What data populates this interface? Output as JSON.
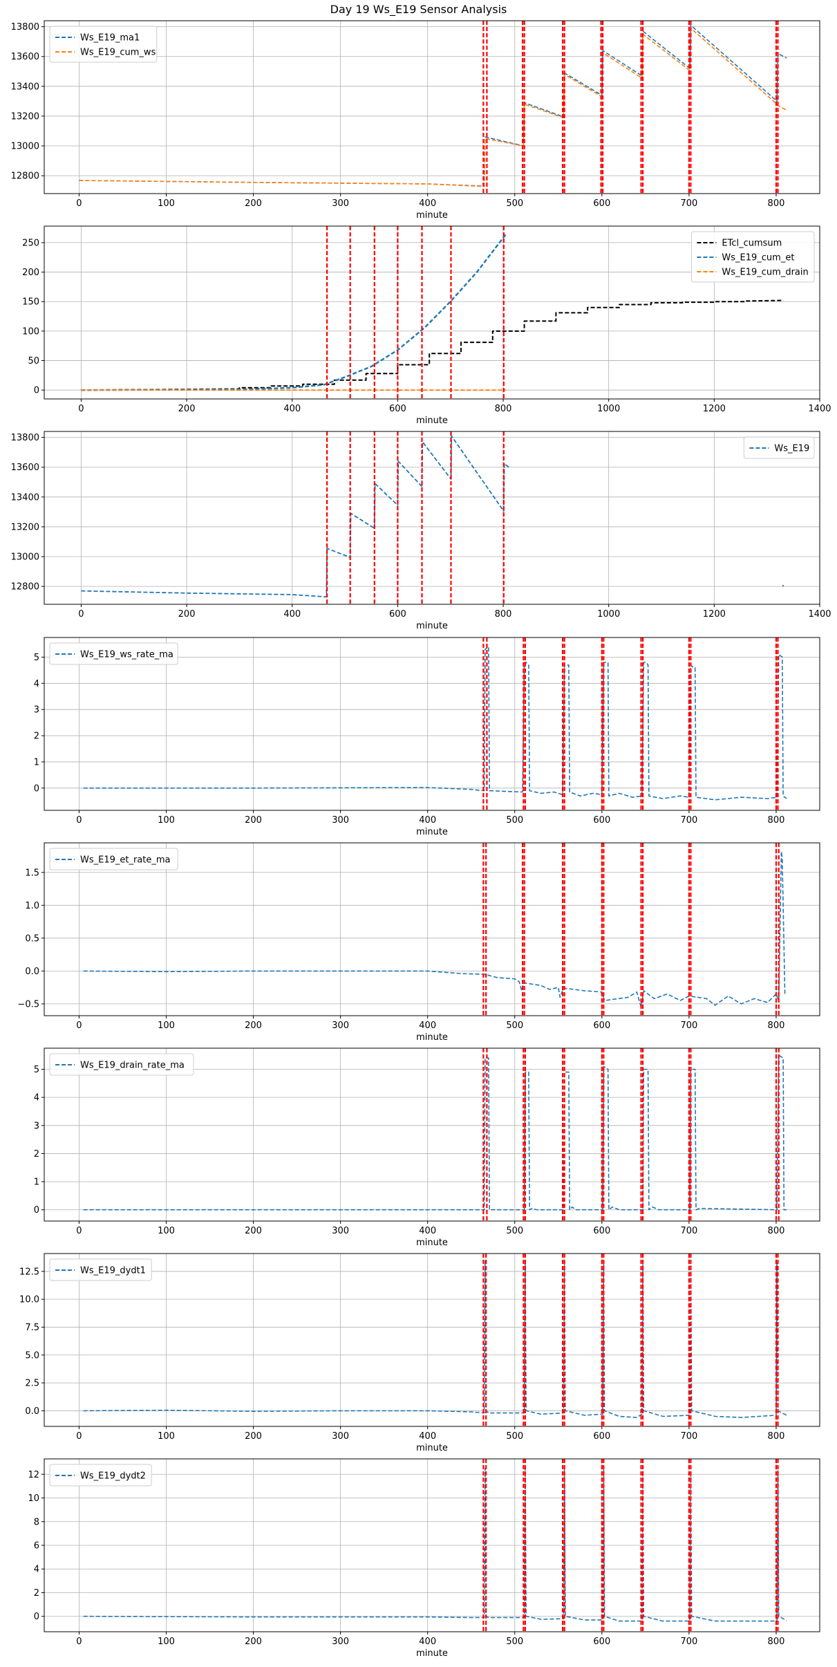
{
  "figure_title": "Day 19 Ws_E19 Sensor Analysis",
  "colors": {
    "blue": "#1f77b4",
    "orange": "#ff7f0e",
    "black": "#000000",
    "event": "#ff0000",
    "grid": "#b0b0b0"
  },
  "chart_data": [
    {
      "type": "line",
      "title": "",
      "xlabel": "minute",
      "ylabel": "",
      "xlim": [
        -40,
        850
      ],
      "ylim": [
        12680,
        13840
      ],
      "xticks": [
        0,
        100,
        200,
        300,
        400,
        500,
        600,
        700,
        800
      ],
      "yticks": [
        12800,
        13000,
        13200,
        13400,
        13600,
        13800
      ],
      "legend_loc": "upper-left",
      "vlines": [
        464,
        468,
        509,
        511,
        555,
        557,
        599,
        601,
        645,
        647,
        700,
        702,
        800,
        802
      ],
      "series": [
        {
          "name": "Ws_E19_ma1",
          "color": "blue",
          "style": "dashed",
          "lw": 1.6,
          "x": [
            0,
            200,
            400,
            465,
            466,
            510,
            511,
            556,
            557,
            600,
            601,
            646,
            647,
            701,
            702,
            801,
            802,
            812
          ],
          "y": [
            12768,
            12755,
            12745,
            12730,
            13060,
            13000,
            13290,
            13195,
            13490,
            13340,
            13640,
            13470,
            13770,
            13520,
            13810,
            13300,
            13620,
            13590
          ]
        },
        {
          "name": "Ws_E19_cum_ws",
          "color": "orange",
          "style": "dashed",
          "lw": 1.6,
          "x": [
            0,
            200,
            400,
            465,
            466,
            510,
            511,
            556,
            557,
            600,
            601,
            646,
            647,
            701,
            702,
            801,
            802,
            812
          ],
          "y": [
            12768,
            12755,
            12745,
            12728,
            13050,
            13000,
            13280,
            13190,
            13480,
            13330,
            13625,
            13455,
            13750,
            13505,
            13790,
            13280,
            13270,
            13240
          ]
        }
      ]
    },
    {
      "type": "line",
      "title": "",
      "xlabel": "minute",
      "ylabel": "",
      "xlim": [
        -70,
        1400
      ],
      "ylim": [
        -15,
        278
      ],
      "xticks": [
        0,
        200,
        400,
        600,
        800,
        1000,
        1200,
        1400
      ],
      "yticks": [
        0,
        50,
        100,
        150,
        200,
        250
      ],
      "legend_loc": "upper-right",
      "vlines": [
        466,
        510,
        556,
        600,
        646,
        701,
        801
      ],
      "series": [
        {
          "name": "ETcl_cumsum",
          "color": "black",
          "style": "dashed",
          "lw": 2,
          "x": [
            0,
            300,
            300,
            360,
            360,
            420,
            420,
            480,
            480,
            540,
            540,
            600,
            600,
            660,
            660,
            720,
            720,
            780,
            780,
            840,
            840,
            900,
            900,
            960,
            960,
            1020,
            1020,
            1080,
            1080,
            1140,
            1140,
            1200,
            1200,
            1260,
            1260,
            1330
          ],
          "y": [
            0,
            2,
            4,
            4,
            7,
            7,
            10,
            10,
            17,
            17,
            28,
            28,
            43,
            43,
            62,
            62,
            81,
            81,
            100,
            100,
            117,
            117,
            131,
            131,
            140,
            140,
            145,
            145,
            148,
            148,
            149,
            149,
            150,
            150,
            151,
            152
          ]
        },
        {
          "name": "Ws_E19_cum_et",
          "color": "blue",
          "style": "dashed",
          "lw": 2.4,
          "x": [
            0,
            300,
            400,
            460,
            500,
            550,
            600,
            650,
            700,
            750,
            805
          ],
          "y": [
            0,
            1,
            4,
            9,
            22,
            40,
            68,
            105,
            150,
            200,
            264
          ]
        },
        {
          "name": "Ws_E19_cum_drain",
          "color": "orange",
          "style": "dashed",
          "lw": 1.8,
          "x": [
            0,
            805
          ],
          "y": [
            0,
            0
          ]
        }
      ]
    },
    {
      "type": "line",
      "title": "",
      "xlabel": "minute",
      "ylabel": "",
      "xlim": [
        -70,
        1400
      ],
      "ylim": [
        12680,
        13840
      ],
      "xticks": [
        0,
        200,
        400,
        600,
        800,
        1000,
        1200,
        1400
      ],
      "yticks": [
        12800,
        13000,
        13200,
        13400,
        13600,
        13800
      ],
      "legend_loc": "upper-right",
      "vlines": [
        466,
        510,
        556,
        600,
        646,
        701,
        801
      ],
      "series": [
        {
          "name": "Ws_E19",
          "color": "blue",
          "style": "dashed",
          "lw": 1.8,
          "x": [
            0,
            200,
            400,
            465,
            466,
            510,
            511,
            556,
            557,
            600,
            601,
            646,
            647,
            701,
            702,
            801,
            802,
            812
          ],
          "y": [
            12770,
            12755,
            12745,
            12730,
            13055,
            12995,
            13290,
            13190,
            13490,
            13345,
            13640,
            13470,
            13770,
            13520,
            13810,
            13305,
            13625,
            13595
          ]
        },
        {
          "name": "",
          "color": "blue",
          "style": "dashed",
          "lw": 1.8,
          "x": [
            1330,
            1331
          ],
          "y": [
            12810,
            12800
          ]
        }
      ]
    },
    {
      "type": "line",
      "title": "",
      "xlabel": "minute",
      "ylabel": "",
      "xlim": [
        -40,
        850
      ],
      "ylim": [
        -0.85,
        5.75
      ],
      "xticks": [
        0,
        100,
        200,
        300,
        400,
        500,
        600,
        700,
        800
      ],
      "yticks": [
        0,
        1,
        2,
        3,
        4,
        5
      ],
      "legend_loc": "upper-left",
      "vlines": [
        464,
        468,
        510,
        512,
        555,
        557,
        600,
        602,
        645,
        647,
        700,
        702,
        800,
        802
      ],
      "series": [
        {
          "name": "Ws_E19_ws_rate_ma",
          "color": "blue",
          "style": "dashed",
          "lw": 1.6,
          "x": [
            5,
            200,
            400,
            450,
            465,
            466,
            470,
            471,
            509,
            511,
            513,
            516,
            517,
            530,
            545,
            555,
            557,
            560,
            562,
            563,
            575,
            590,
            600,
            602,
            605,
            607,
            608,
            620,
            635,
            646,
            648,
            651,
            653,
            654,
            670,
            690,
            700,
            702,
            705,
            707,
            708,
            730,
            760,
            790,
            801,
            803,
            807,
            808,
            812
          ],
          "y": [
            0,
            0,
            0.02,
            -0.05,
            -0.1,
            5.3,
            5.4,
            -0.1,
            -0.15,
            4.8,
            4.8,
            4.7,
            -0.1,
            -0.2,
            -0.15,
            -0.25,
            4.7,
            4.7,
            4.7,
            -0.15,
            -0.3,
            -0.2,
            -0.25,
            4.8,
            4.8,
            4.8,
            -0.3,
            -0.2,
            -0.35,
            -0.3,
            4.8,
            4.8,
            4.7,
            -0.3,
            -0.4,
            -0.3,
            -0.35,
            4.7,
            4.6,
            4.6,
            -0.35,
            -0.45,
            -0.35,
            -0.4,
            -0.35,
            5.1,
            5.0,
            -0.3,
            -0.4
          ]
        }
      ]
    },
    {
      "type": "line",
      "title": "",
      "xlabel": "minute",
      "ylabel": "",
      "xlim": [
        -40,
        850
      ],
      "ylim": [
        -0.68,
        1.95
      ],
      "xticks": [
        0,
        100,
        200,
        300,
        400,
        500,
        600,
        700,
        800
      ],
      "yticks": [
        -0.5,
        0.0,
        0.5,
        1.0,
        1.5
      ],
      "legend_loc": "upper-left",
      "vlines": [
        464,
        467,
        509,
        511,
        555,
        557,
        600,
        602,
        645,
        647,
        700,
        702,
        800,
        803
      ],
      "series": [
        {
          "name": "Ws_E19_et_rate_ma",
          "color": "blue",
          "style": "dashed",
          "lw": 1.6,
          "x": [
            5,
            100,
            200,
            300,
            400,
            420,
            440,
            465,
            480,
            500,
            505,
            508,
            510,
            530,
            540,
            550,
            552,
            556,
            580,
            600,
            603,
            630,
            640,
            645,
            648,
            660,
            675,
            690,
            700,
            720,
            730,
            745,
            760,
            775,
            790,
            800,
            803,
            806,
            807,
            810
          ],
          "y": [
            0,
            -0.01,
            0,
            0,
            0,
            -0.02,
            -0.04,
            -0.05,
            -0.1,
            -0.12,
            -0.16,
            -0.3,
            -0.18,
            -0.22,
            -0.28,
            -0.25,
            -0.4,
            -0.26,
            -0.3,
            -0.32,
            -0.45,
            -0.4,
            -0.32,
            -0.55,
            -0.3,
            -0.42,
            -0.35,
            -0.45,
            -0.38,
            -0.42,
            -0.52,
            -0.38,
            -0.5,
            -0.42,
            -0.48,
            -0.35,
            -0.45,
            1.82,
            1.7,
            -0.35
          ]
        }
      ]
    },
    {
      "type": "line",
      "title": "",
      "xlabel": "minute",
      "ylabel": "",
      "xlim": [
        -40,
        850
      ],
      "ylim": [
        -0.4,
        5.75
      ],
      "xticks": [
        0,
        100,
        200,
        300,
        400,
        500,
        600,
        700,
        800
      ],
      "yticks": [
        0,
        1,
        2,
        3,
        4,
        5
      ],
      "legend_loc": "upper-left",
      "vlines": [
        464,
        468,
        510,
        512,
        555,
        557,
        600,
        602,
        645,
        647,
        700,
        702,
        800,
        803
      ],
      "series": [
        {
          "name": "Ws_E19_drain_rate_ma",
          "color": "blue",
          "style": "dashed",
          "lw": 1.6,
          "x": [
            5,
            465,
            466,
            470,
            471,
            475,
            511,
            512,
            516,
            517,
            520,
            525,
            556,
            557,
            562,
            563,
            566,
            570,
            601,
            602,
            607,
            608,
            612,
            620,
            647,
            648,
            653,
            654,
            658,
            662,
            665,
            701,
            702,
            707,
            708,
            712,
            801,
            803,
            808,
            809,
            812
          ],
          "y": [
            0,
            0,
            5.4,
            5.4,
            0,
            0,
            0,
            4.9,
            4.9,
            0,
            0.05,
            0,
            0,
            4.9,
            4.9,
            0,
            0.1,
            0,
            0,
            5.1,
            5.0,
            0,
            0.1,
            0,
            0,
            5.0,
            5.0,
            0,
            0.1,
            0.05,
            0,
            0,
            5.0,
            5.0,
            0,
            0.05,
            0,
            5.5,
            5.4,
            0,
            0
          ]
        }
      ]
    },
    {
      "type": "line",
      "title": "",
      "xlabel": "minute",
      "ylabel": "",
      "xlim": [
        -40,
        850
      ],
      "ylim": [
        -1.4,
        14.1
      ],
      "xticks": [
        0,
        100,
        200,
        300,
        400,
        500,
        600,
        700,
        800
      ],
      "yticks": [
        0.0,
        2.5,
        5.0,
        7.5,
        10.0,
        12.5
      ],
      "legend_loc": "upper-left",
      "vlines": [
        464,
        467,
        510,
        512,
        555,
        557,
        600,
        602,
        645,
        647,
        700,
        702,
        800,
        802
      ],
      "series": [
        {
          "name": "Ws_E19_dydt1",
          "color": "blue",
          "style": "dashed",
          "lw": 1.6,
          "x": [
            5,
            100,
            200,
            300,
            400,
            450,
            465,
            466,
            467,
            470,
            511,
            512,
            513,
            530,
            556,
            557,
            558,
            580,
            601,
            602,
            603,
            620,
            640,
            646,
            647,
            648,
            670,
            701,
            702,
            703,
            730,
            760,
            800,
            801,
            802,
            812
          ],
          "y": [
            0,
            0.05,
            -0.05,
            0,
            0,
            -0.1,
            -0.2,
            13.5,
            0,
            -0.2,
            -0.2,
            13.5,
            0,
            -0.3,
            -0.2,
            13.3,
            0,
            -0.4,
            -0.3,
            13.2,
            0,
            -0.5,
            -0.6,
            -0.3,
            13.1,
            0,
            -0.5,
            -0.4,
            13.1,
            0,
            -0.5,
            -0.6,
            -0.4,
            13.2,
            0,
            -0.4
          ]
        }
      ]
    },
    {
      "type": "line",
      "title": "",
      "xlabel": "minute",
      "ylabel": "",
      "xlim": [
        -40,
        850
      ],
      "ylim": [
        -1.3,
        13.3
      ],
      "xticks": [
        0,
        100,
        200,
        300,
        400,
        500,
        600,
        700,
        800
      ],
      "yticks": [
        0,
        2,
        4,
        6,
        8,
        10,
        12
      ],
      "legend_loc": "upper-left",
      "vlines": [
        464,
        467,
        510,
        512,
        555,
        557,
        600,
        602,
        645,
        647,
        700,
        702,
        800,
        802
      ],
      "series": [
        {
          "name": "Ws_E19_dydt2",
          "color": "blue",
          "style": "dashed",
          "lw": 1.6,
          "x": [
            5,
            100,
            200,
            300,
            400,
            450,
            465,
            466,
            467,
            470,
            511,
            512,
            513,
            530,
            556,
            557,
            558,
            580,
            601,
            602,
            603,
            620,
            646,
            647,
            648,
            670,
            701,
            702,
            703,
            730,
            760,
            801,
            802,
            803,
            812
          ],
          "y": [
            0,
            -0.02,
            -0.05,
            -0.05,
            -0.05,
            -0.1,
            -0.1,
            12.5,
            0,
            -0.1,
            -0.1,
            12.5,
            0,
            -0.25,
            -0.2,
            12.4,
            0,
            -0.3,
            -0.3,
            12.4,
            0,
            -0.4,
            -0.4,
            12.3,
            0,
            -0.4,
            -0.4,
            12.0,
            0,
            -0.4,
            -0.4,
            -0.4,
            12.3,
            0,
            -0.35
          ]
        }
      ]
    }
  ]
}
